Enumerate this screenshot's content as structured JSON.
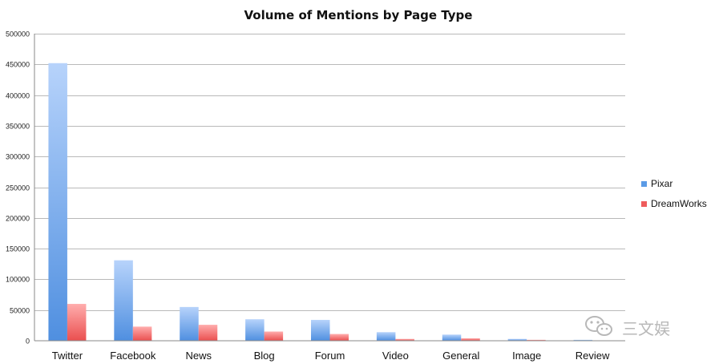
{
  "chart_data": {
    "type": "bar",
    "title": "Volume of Mentions by Page Type",
    "xlabel": "",
    "ylabel": "",
    "ylim": [
      0,
      500000
    ],
    "yticks": [
      0,
      50000,
      100000,
      150000,
      200000,
      250000,
      300000,
      350000,
      400000,
      450000,
      500000
    ],
    "grid": true,
    "legend_position": "right",
    "categories": [
      "Twitter",
      "Facebook",
      "News",
      "Blog",
      "Forum",
      "Video",
      "General",
      "Image",
      "Review"
    ],
    "series": [
      {
        "name": "Pixar",
        "color": "#5b9be6",
        "values": [
          452000,
          131000,
          55000,
          35000,
          34000,
          14000,
          10000,
          3000,
          1500
        ]
      },
      {
        "name": "DreamWorks",
        "color": "#ee5c5c",
        "values": [
          60000,
          23000,
          26000,
          15000,
          11000,
          3000,
          4000,
          1500,
          500
        ]
      }
    ]
  },
  "watermark": {
    "text": "三文娱",
    "icon": "wechat-icon"
  }
}
